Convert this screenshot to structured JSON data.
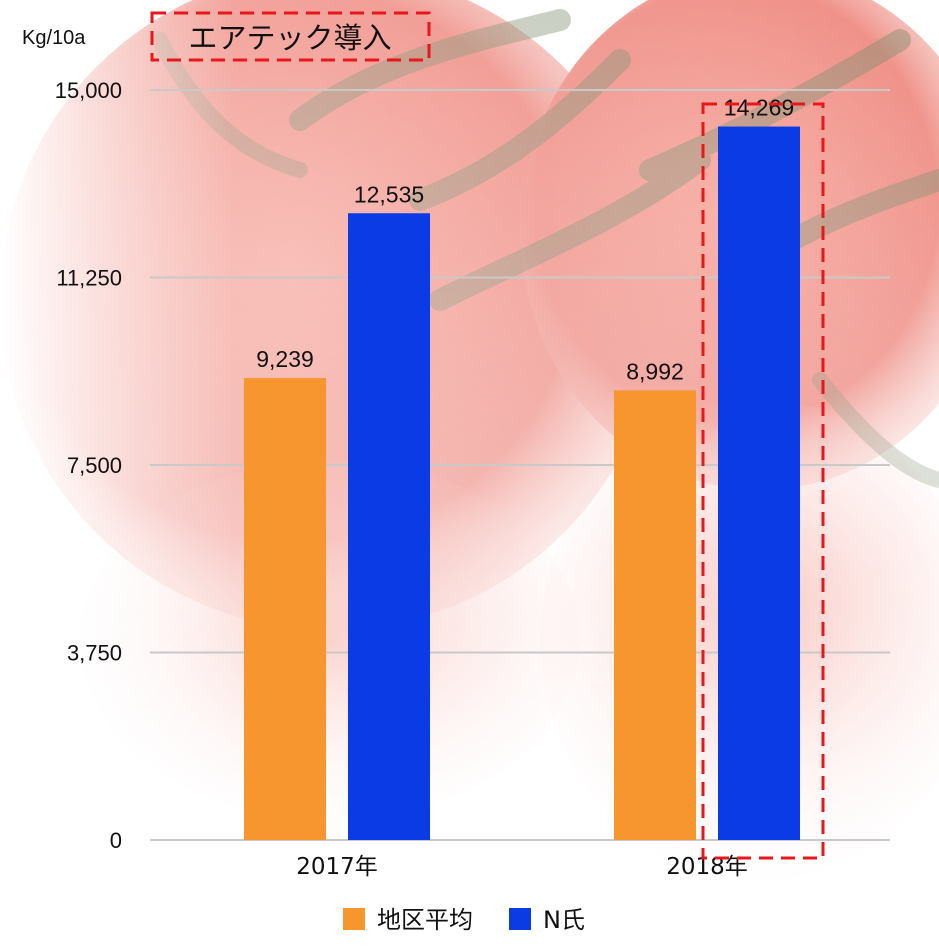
{
  "chart_data": {
    "type": "bar",
    "title": "",
    "annotation_label": "エアテック導入",
    "ylabel": "Kg/10a",
    "xlabel": "",
    "categories": [
      "2017年",
      "2018年"
    ],
    "yticks": [
      "0",
      "3,750",
      "7,500",
      "11,250",
      "15,000"
    ],
    "ylim": [
      0,
      15000
    ],
    "grid": true,
    "legend_position": "bottom",
    "highlighted_category": "2018年",
    "highlighted_series": "N氏",
    "series": [
      {
        "name": "地区平均",
        "color": "#F7962F",
        "values": [
          9239,
          8992
        ],
        "labels": [
          "9,239",
          "8,992"
        ]
      },
      {
        "name": "N氏",
        "color": "#0B3BE5",
        "values": [
          12535,
          14269
        ],
        "labels": [
          "12,535",
          "14,269"
        ]
      }
    ]
  },
  "colors": {
    "highlight_dash": "#E8171B",
    "gridline": "#C9C9C9",
    "text": "#111111",
    "background_tint": "#F2B3AE"
  }
}
